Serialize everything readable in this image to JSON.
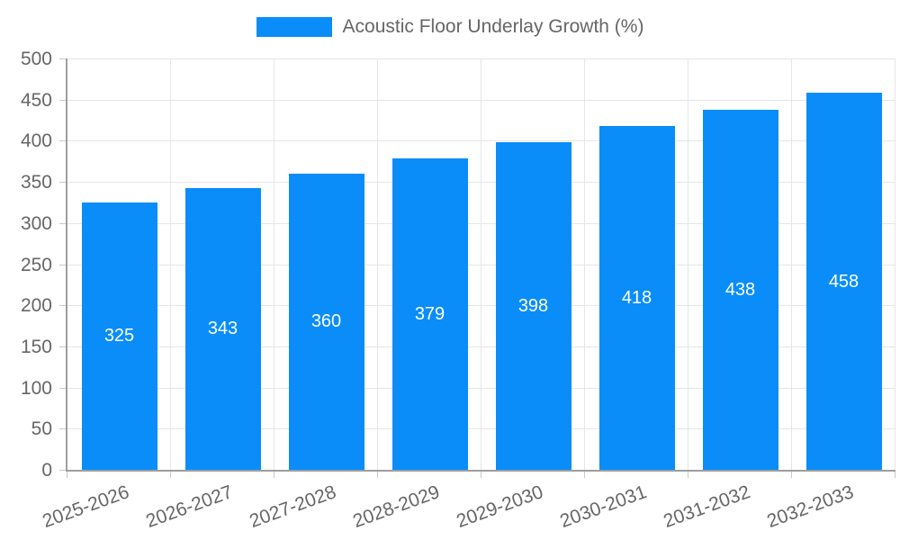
{
  "chart_data": {
    "type": "bar",
    "title": "Acoustic Floor Underlay Growth (%)",
    "legend_label": "Acoustic Floor Underlay Growth (%)",
    "legend_position": "top",
    "categories": [
      "2025-2026",
      "2026-2027",
      "2027-2028",
      "2028-2029",
      "2029-2030",
      "2030-2031",
      "2031-2032",
      "2032-2033"
    ],
    "series": [
      {
        "name": "Acoustic Floor Underlay Growth (%)",
        "values": [
          325,
          343,
          360,
          379,
          398,
          418,
          438,
          458
        ]
      }
    ],
    "value_labels": [
      "325",
      "343",
      "360",
      "379",
      "398",
      "418",
      "438",
      "458"
    ],
    "xlabel": "",
    "ylabel": "",
    "ylim": [
      0,
      500
    ],
    "ytick_step": 50,
    "yticks": [
      0,
      50,
      100,
      150,
      200,
      250,
      300,
      350,
      400,
      450,
      500
    ],
    "grid": true,
    "x_label_rotation_deg": -20,
    "colors": {
      "bar": "#0A8DF8",
      "grid": "#E6E6E6",
      "axis": "#9E9E9E",
      "tick_mark": "#C9C9C9",
      "tick_label": "#666666",
      "value_label": "#FFFFFF",
      "background": "#FFFFFF"
    }
  }
}
